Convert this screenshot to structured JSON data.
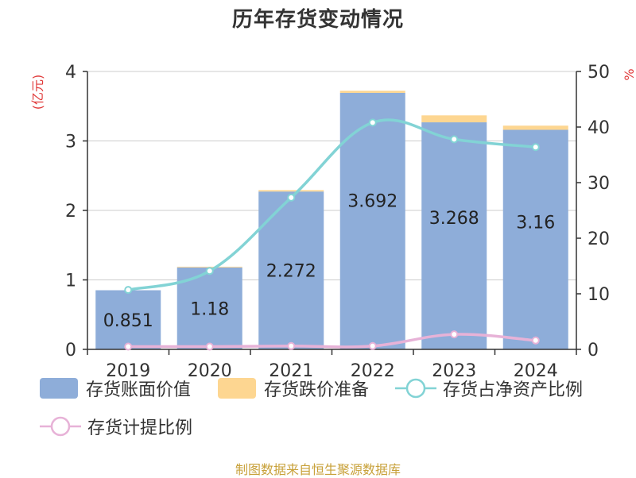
{
  "title": "历年存货变动情况",
  "source_note": "制图数据来自恒生聚源数据库",
  "colors": {
    "bar_value": "#8eadd9",
    "bar_reserve": "#fdd691",
    "line_ratio_net_assets": "#82d3d5",
    "line_provision": "#e7b2d7",
    "axis_unit": "#e03a3a",
    "source": "#c8a13a",
    "grid": "#cccccc",
    "axis": "#333333"
  },
  "chart_data": {
    "type": "bar",
    "categories": [
      "2019",
      "2020",
      "2021",
      "2022",
      "2023",
      "2024"
    ],
    "ylabel_left": "(亿元)",
    "ylabel_right": "%",
    "ylim_left": [
      0,
      4
    ],
    "yticks_left": [
      0,
      1,
      2,
      3,
      4
    ],
    "ylim_right": [
      0,
      50
    ],
    "yticks_right": [
      0,
      10,
      20,
      30,
      40,
      50
    ],
    "grid": true,
    "legend_position": "bottom",
    "series": [
      {
        "name": "存货账面价值",
        "type": "bar",
        "stack": "inv",
        "axis": "left",
        "values": [
          0.851,
          1.18,
          2.272,
          3.692,
          3.268,
          3.16
        ],
        "labels": [
          "0.851",
          "1.18",
          "2.272",
          "3.692",
          "3.268",
          "3.16"
        ]
      },
      {
        "name": "存货跌价准备",
        "type": "bar",
        "stack": "inv",
        "axis": "left",
        "values": [
          0,
          0.01,
          0.02,
          0.03,
          0.1,
          0.06
        ]
      },
      {
        "name": "存货占净资产比例",
        "type": "line",
        "axis": "right",
        "values": [
          10.7,
          14.1,
          27.3,
          40.8,
          37.8,
          36.4
        ]
      },
      {
        "name": "存货计提比例",
        "type": "line",
        "axis": "right",
        "values": [
          0.5,
          0.5,
          0.6,
          0.6,
          2.7,
          1.6
        ]
      }
    ]
  }
}
